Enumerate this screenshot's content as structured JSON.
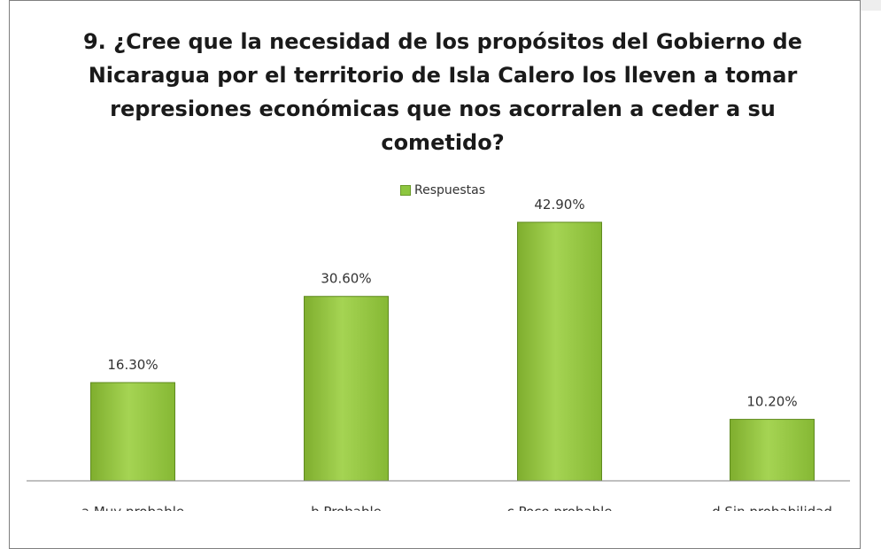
{
  "chart_data": {
    "type": "bar",
    "title": "9. ¿Cree que la necesidad de los propósitos del Gobierno de Nicaragua por el territorio de Isla Calero los lleven a tomar represiones económicas que nos acorralen a ceder a su cometido?",
    "title_lines": [
      "9. ¿Cree que la necesidad de los propósitos del Gobierno de",
      "Nicaragua por el territorio de Isla Calero los lleven a tomar",
      "represiones económicas que nos acorralen a ceder a su",
      "cometido?"
    ],
    "categories": [
      "a.Muy probable",
      "b.Probable",
      "c.Poco probable",
      "d.Sin probabilidad"
    ],
    "series": [
      {
        "name": "Respuestas",
        "values": [
          16.3,
          30.6,
          42.9,
          10.2
        ],
        "labels": [
          "16.30%",
          "30.60%",
          "42.90%",
          "10.20%"
        ]
      }
    ],
    "ylim": [
      0,
      50
    ],
    "grid": false,
    "legend_position": "top",
    "colors": {
      "bar_fill": "#9bc94a",
      "bar_border": "#5f8a1f"
    }
  }
}
